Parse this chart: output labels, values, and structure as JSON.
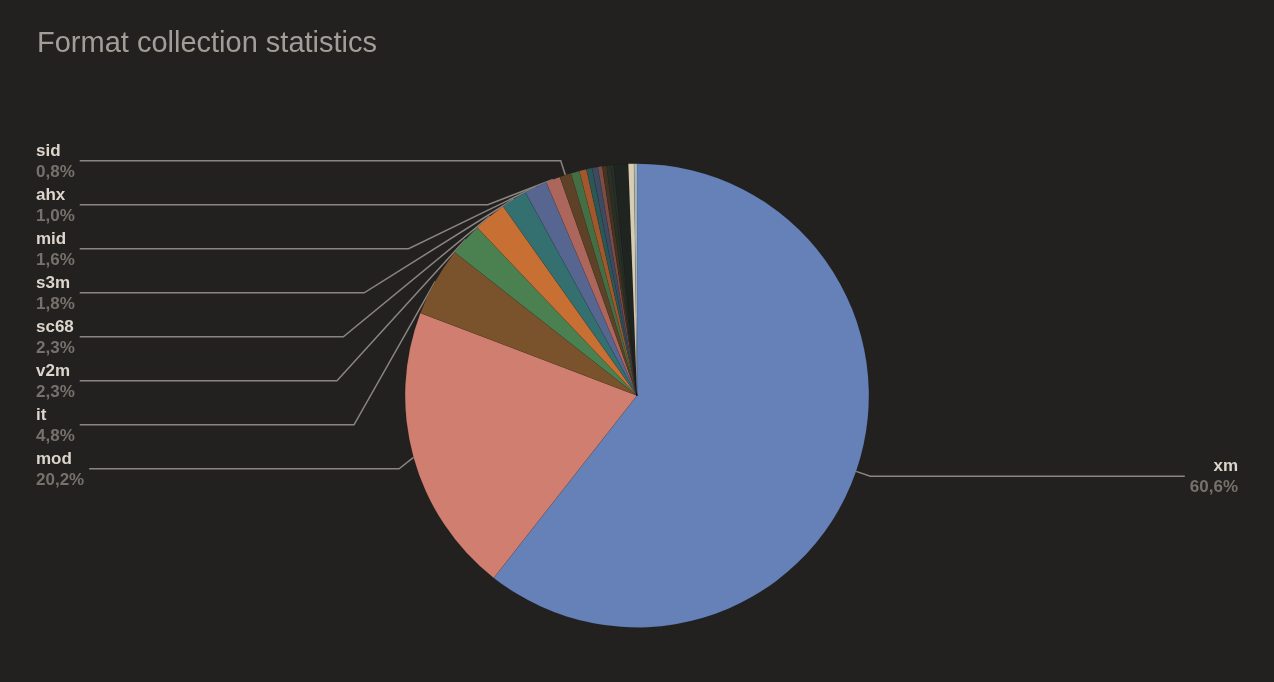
{
  "chart_data": {
    "type": "pie",
    "title": "Format collection statistics",
    "categories": [
      "xm",
      "mod",
      "it",
      "v2m",
      "sc68",
      "s3m",
      "mid",
      "ahx",
      "sid",
      null,
      null,
      null,
      null,
      null,
      null,
      null,
      null,
      null,
      null,
      null
    ],
    "values": [
      60.6,
      20.2,
      4.8,
      2.3,
      2.3,
      1.8,
      1.6,
      1.0,
      0.8,
      0.6,
      0.5,
      0.4,
      0.4,
      0.3,
      0.3,
      0.3,
      0.2,
      1.0,
      0.4,
      0.2
    ],
    "value_labels": [
      "60,6%",
      "20,2%",
      "4,8%",
      "2,3%",
      "2,3%",
      "1,8%",
      "1,6%",
      "1,0%",
      "0,8%",
      null,
      null,
      null,
      null,
      null,
      null,
      null,
      null,
      null,
      null,
      null
    ],
    "colors": [
      "#6581b8",
      "#cf7e6f",
      "#7a522c",
      "#4b8150",
      "#c86f33",
      "#33706f",
      "#566691",
      "#ad665b",
      "#5e4228",
      "#466e44",
      "#a2582c",
      "#2b5756",
      "#3d4a63",
      "#7d4c45",
      "#453322",
      "#2a3026",
      "#263028",
      "#1f2420",
      "#d8cdb0",
      "#a9b8b8"
    ],
    "legend": false
  }
}
